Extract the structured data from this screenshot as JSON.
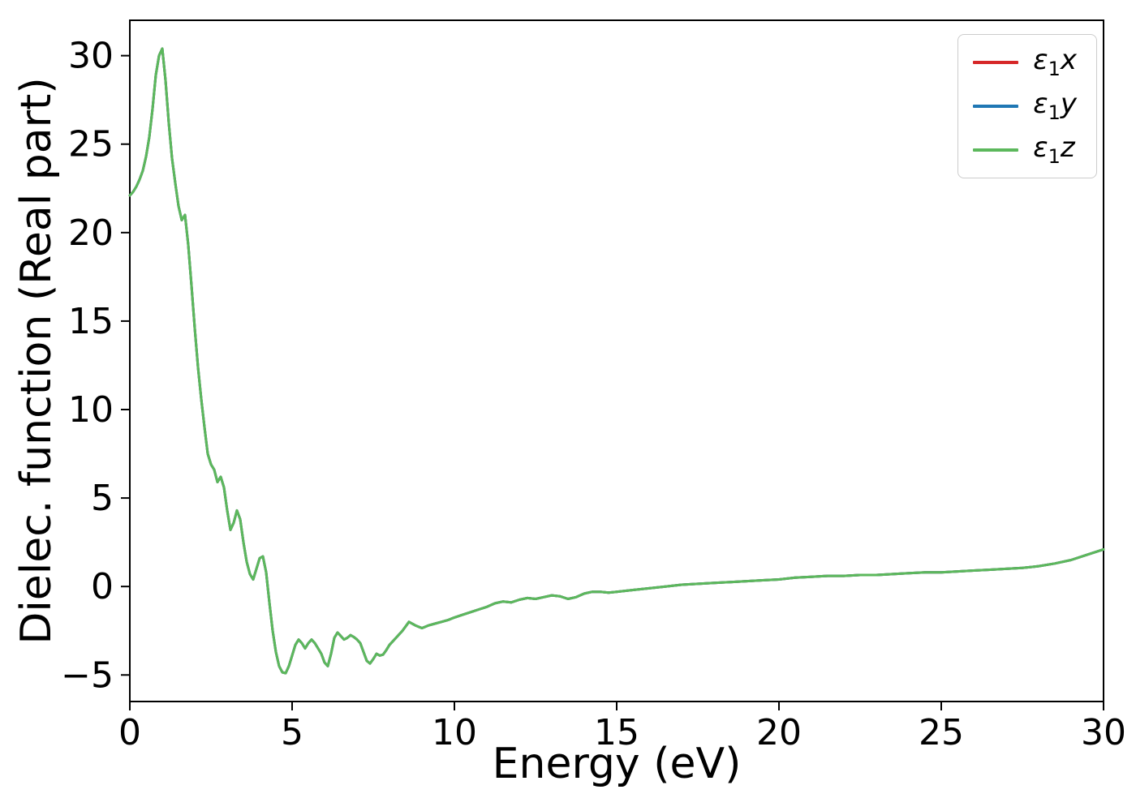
{
  "figure": {
    "background": "#ffffff"
  },
  "chart_data": {
    "type": "line",
    "title": "",
    "xlabel": "Energy (eV)",
    "ylabel": "Dielec. function (Real part)",
    "xlim": [
      0,
      30
    ],
    "ylim": [
      -6.5,
      32
    ],
    "xticks": [
      0,
      5,
      10,
      15,
      20,
      25,
      30
    ],
    "yticks": [
      -5,
      0,
      5,
      10,
      15,
      20,
      25,
      30
    ],
    "grid": false,
    "legend_position": "upper right",
    "series": [
      {
        "name": "ε1x",
        "sym": "ε",
        "sub": "1",
        "var": "x",
        "color": "#d62728"
      },
      {
        "name": "ε1y",
        "sym": "ε",
        "sub": "1",
        "var": "y",
        "color": "#1f77b4"
      },
      {
        "name": "ε1z",
        "sym": "ε",
        "sub": "1",
        "var": "z",
        "color": "#5cb85c"
      }
    ],
    "series_note": "All three series overlap exactly; only the last-drawn green (ε1z) curve is visible.",
    "points": [
      [
        0,
        22.1
      ],
      [
        0.1,
        22.3
      ],
      [
        0.2,
        22.6
      ],
      [
        0.3,
        23.0
      ],
      [
        0.4,
        23.5
      ],
      [
        0.5,
        24.3
      ],
      [
        0.6,
        25.4
      ],
      [
        0.7,
        27.0
      ],
      [
        0.8,
        28.9
      ],
      [
        0.9,
        30.0
      ],
      [
        1.0,
        30.4
      ],
      [
        1.1,
        28.6
      ],
      [
        1.2,
        26.2
      ],
      [
        1.3,
        24.2
      ],
      [
        1.4,
        22.8
      ],
      [
        1.5,
        21.5
      ],
      [
        1.6,
        20.7
      ],
      [
        1.7,
        21.0
      ],
      [
        1.8,
        19.3
      ],
      [
        1.9,
        17.0
      ],
      [
        2.0,
        14.6
      ],
      [
        2.1,
        12.4
      ],
      [
        2.2,
        10.6
      ],
      [
        2.3,
        9.0
      ],
      [
        2.4,
        7.5
      ],
      [
        2.5,
        6.9
      ],
      [
        2.6,
        6.6
      ],
      [
        2.7,
        5.9
      ],
      [
        2.8,
        6.2
      ],
      [
        2.9,
        5.6
      ],
      [
        3.0,
        4.3
      ],
      [
        3.1,
        3.2
      ],
      [
        3.2,
        3.6
      ],
      [
        3.3,
        4.3
      ],
      [
        3.4,
        3.8
      ],
      [
        3.5,
        2.5
      ],
      [
        3.6,
        1.4
      ],
      [
        3.7,
        0.7
      ],
      [
        3.8,
        0.4
      ],
      [
        3.9,
        1.0
      ],
      [
        4.0,
        1.6
      ],
      [
        4.1,
        1.7
      ],
      [
        4.2,
        0.8
      ],
      [
        4.3,
        -0.9
      ],
      [
        4.4,
        -2.5
      ],
      [
        4.5,
        -3.7
      ],
      [
        4.6,
        -4.5
      ],
      [
        4.7,
        -4.85
      ],
      [
        4.8,
        -4.9
      ],
      [
        4.9,
        -4.5
      ],
      [
        5.0,
        -3.9
      ],
      [
        5.1,
        -3.3
      ],
      [
        5.2,
        -3.0
      ],
      [
        5.3,
        -3.2
      ],
      [
        5.4,
        -3.5
      ],
      [
        5.5,
        -3.2
      ],
      [
        5.6,
        -3.0
      ],
      [
        5.7,
        -3.2
      ],
      [
        5.8,
        -3.5
      ],
      [
        5.9,
        -3.8
      ],
      [
        6.0,
        -4.3
      ],
      [
        6.1,
        -4.5
      ],
      [
        6.2,
        -3.8
      ],
      [
        6.3,
        -2.9
      ],
      [
        6.4,
        -2.6
      ],
      [
        6.5,
        -2.8
      ],
      [
        6.6,
        -3.0
      ],
      [
        6.7,
        -2.9
      ],
      [
        6.8,
        -2.75
      ],
      [
        6.9,
        -2.85
      ],
      [
        7.0,
        -3.0
      ],
      [
        7.1,
        -3.2
      ],
      [
        7.2,
        -3.7
      ],
      [
        7.3,
        -4.2
      ],
      [
        7.4,
        -4.35
      ],
      [
        7.5,
        -4.1
      ],
      [
        7.6,
        -3.8
      ],
      [
        7.7,
        -3.9
      ],
      [
        7.8,
        -3.85
      ],
      [
        7.9,
        -3.6
      ],
      [
        8.0,
        -3.3
      ],
      [
        8.2,
        -2.9
      ],
      [
        8.4,
        -2.5
      ],
      [
        8.6,
        -2.0
      ],
      [
        8.8,
        -2.2
      ],
      [
        9.0,
        -2.35
      ],
      [
        9.2,
        -2.2
      ],
      [
        9.4,
        -2.1
      ],
      [
        9.6,
        -2.0
      ],
      [
        9.8,
        -1.9
      ],
      [
        10.0,
        -1.75
      ],
      [
        10.25,
        -1.6
      ],
      [
        10.5,
        -1.45
      ],
      [
        10.75,
        -1.3
      ],
      [
        11.0,
        -1.15
      ],
      [
        11.25,
        -0.95
      ],
      [
        11.5,
        -0.85
      ],
      [
        11.75,
        -0.9
      ],
      [
        12.0,
        -0.75
      ],
      [
        12.25,
        -0.65
      ],
      [
        12.5,
        -0.7
      ],
      [
        12.75,
        -0.6
      ],
      [
        13.0,
        -0.5
      ],
      [
        13.25,
        -0.55
      ],
      [
        13.5,
        -0.7
      ],
      [
        13.75,
        -0.6
      ],
      [
        14.0,
        -0.4
      ],
      [
        14.25,
        -0.3
      ],
      [
        14.5,
        -0.3
      ],
      [
        14.75,
        -0.35
      ],
      [
        15.0,
        -0.3
      ],
      [
        15.5,
        -0.2
      ],
      [
        16.0,
        -0.1
      ],
      [
        16.5,
        0.0
      ],
      [
        17.0,
        0.1
      ],
      [
        17.5,
        0.15
      ],
      [
        18.0,
        0.2
      ],
      [
        18.5,
        0.25
      ],
      [
        19.0,
        0.3
      ],
      [
        19.5,
        0.35
      ],
      [
        20.0,
        0.4
      ],
      [
        20.5,
        0.5
      ],
      [
        21.0,
        0.55
      ],
      [
        21.5,
        0.6
      ],
      [
        22.0,
        0.6
      ],
      [
        22.5,
        0.65
      ],
      [
        23.0,
        0.65
      ],
      [
        23.5,
        0.7
      ],
      [
        24.0,
        0.75
      ],
      [
        24.5,
        0.8
      ],
      [
        25.0,
        0.8
      ],
      [
        25.5,
        0.85
      ],
      [
        26.0,
        0.9
      ],
      [
        26.5,
        0.95
      ],
      [
        27.0,
        1.0
      ],
      [
        27.5,
        1.05
      ],
      [
        28.0,
        1.15
      ],
      [
        28.5,
        1.3
      ],
      [
        29.0,
        1.5
      ],
      [
        29.5,
        1.8
      ],
      [
        30.0,
        2.1
      ]
    ]
  }
}
